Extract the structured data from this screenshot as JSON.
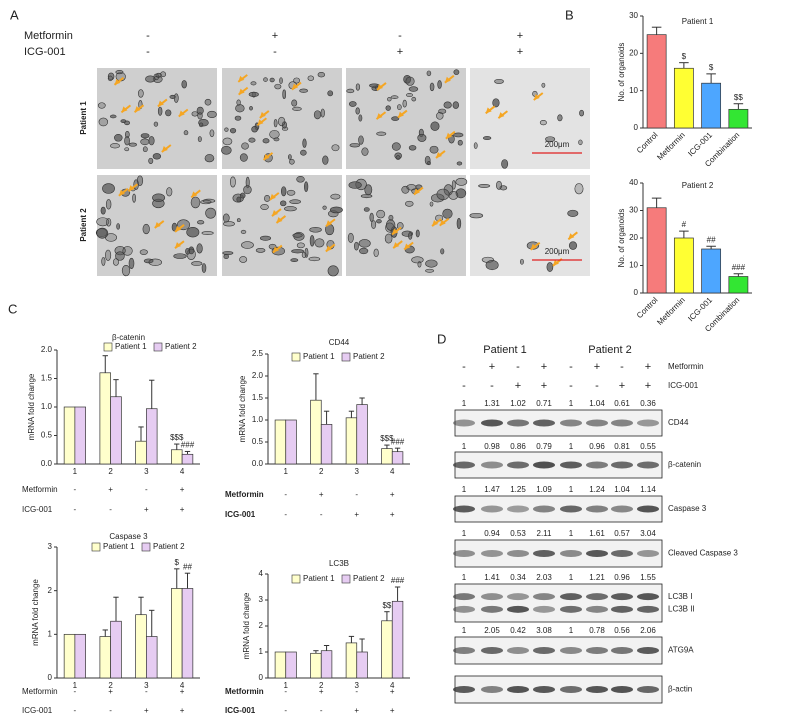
{
  "panels": [
    "A",
    "B",
    "C",
    "D"
  ],
  "panel_a": {
    "treatments": [
      {
        "label": "Metformin",
        "signs": [
          "-",
          "+",
          "-",
          "+"
        ]
      },
      {
        "label": "ICG-001",
        "signs": [
          "-",
          "-",
          "+",
          "+"
        ]
      }
    ],
    "patients": [
      "Patient 1",
      "Patient 2"
    ],
    "scale_bar": "200μm"
  },
  "panel_c_treatments": [
    {
      "label": "Metformin",
      "signs": [
        "-",
        "+",
        "-",
        "+"
      ]
    },
    {
      "label": "ICG-001",
      "signs": [
        "-",
        "-",
        "+",
        "+"
      ]
    }
  ],
  "chart_data": [
    {
      "type": "bar",
      "title": "Patient 1",
      "y_label": "No. of organoids",
      "categories": [
        "Control",
        "Metformin",
        "ICG-001",
        "Combination"
      ],
      "values": [
        25,
        16,
        12,
        5
      ],
      "errors": [
        2,
        1.5,
        2.5,
        1.5
      ],
      "colors": [
        "#f67b7b",
        "#ffff33",
        "#4da6ff",
        "#33e633"
      ],
      "annotations": [
        null,
        "$",
        "$",
        "$$"
      ],
      "ylim": [
        0,
        30
      ],
      "yticks": [
        0,
        10,
        20,
        30
      ]
    },
    {
      "type": "bar",
      "title": "Patient 2",
      "y_label": "No. of organoids",
      "categories": [
        "Control",
        "Metformin",
        "ICG-001",
        "Combination"
      ],
      "values": [
        31,
        20,
        16,
        6
      ],
      "errors": [
        3.5,
        2.5,
        1,
        1
      ],
      "colors": [
        "#f67b7b",
        "#ffff33",
        "#4da6ff",
        "#33e633"
      ],
      "annotations": [
        null,
        "#",
        "##",
        "###"
      ],
      "ylim": [
        0,
        40
      ],
      "yticks": [
        0,
        10,
        20,
        30,
        40
      ]
    },
    {
      "type": "bar",
      "title": "β-catenin",
      "y_label": "mRNA fold change",
      "categories": [
        "1",
        "2",
        "3",
        "4"
      ],
      "series": [
        {
          "name": "Patient 1",
          "color": "#ffffcc",
          "values": [
            1,
            1.6,
            0.4,
            0.25
          ],
          "errors": [
            null,
            0.3,
            0.25,
            0.1
          ],
          "annotations": [
            null,
            null,
            null,
            "$$$"
          ]
        },
        {
          "name": "Patient 2",
          "color": "#e6ccf2",
          "values": [
            1,
            1.18,
            0.97,
            0.17
          ],
          "errors": [
            null,
            0.3,
            0.5,
            0.05
          ],
          "annotations": [
            null,
            null,
            null,
            "###"
          ]
        }
      ],
      "ylim": [
        0,
        2
      ],
      "yticks": [
        {
          "value": 0,
          "label": "0.0"
        },
        {
          "value": 0.5,
          "label": "0.5"
        },
        {
          "value": 1,
          "label": "1.0"
        },
        {
          "value": 1.5,
          "label": "1.5"
        },
        {
          "value": 2,
          "label": "2.0"
        }
      ]
    },
    {
      "type": "bar",
      "title": "CD44",
      "y_label": "mRNA fold change",
      "categories": [
        "1",
        "2",
        "3",
        "4"
      ],
      "series": [
        {
          "name": "Patient 1",
          "color": "#ffffcc",
          "values": [
            1,
            1.45,
            1.05,
            0.35
          ],
          "errors": [
            null,
            0.6,
            0.15,
            0.08
          ],
          "annotations": [
            null,
            null,
            null,
            "$$$"
          ]
        },
        {
          "name": "Patient 2",
          "color": "#e6ccf2",
          "values": [
            1,
            0.9,
            1.35,
            0.28
          ],
          "errors": [
            null,
            0.3,
            0.15,
            0.08
          ],
          "annotations": [
            null,
            null,
            null,
            "###"
          ]
        }
      ],
      "ylim": [
        0,
        2.5
      ],
      "yticks": [
        {
          "value": 0,
          "label": "0.0"
        },
        {
          "value": 0.5,
          "label": "0.5"
        },
        {
          "value": 1,
          "label": "1.0"
        },
        {
          "value": 1.5,
          "label": "1.5"
        },
        {
          "value": 2,
          "label": "2.0"
        },
        {
          "value": 2.5,
          "label": "2.5"
        }
      ]
    },
    {
      "type": "bar",
      "title": "Caspase 3",
      "y_label": "mRNA fold change",
      "categories": [
        "1",
        "2",
        "3",
        "4"
      ],
      "series": [
        {
          "name": "Patient 1",
          "color": "#ffffcc",
          "values": [
            1,
            0.95,
            1.45,
            2.05
          ],
          "errors": [
            null,
            0.15,
            0.4,
            0.45
          ],
          "annotations": [
            null,
            null,
            null,
            "$"
          ]
        },
        {
          "name": "Patient 2",
          "color": "#e6ccf2",
          "values": [
            1,
            1.3,
            0.95,
            2.05
          ],
          "errors": [
            null,
            0.55,
            0.6,
            0.35
          ],
          "annotations": [
            null,
            null,
            null,
            "##"
          ]
        }
      ],
      "ylim": [
        0,
        3
      ],
      "yticks": [
        0,
        1,
        2,
        3
      ]
    },
    {
      "type": "bar",
      "title": "LC3B",
      "y_label": "mRNA fold change",
      "categories": [
        "1",
        "2",
        "3",
        "4"
      ],
      "series": [
        {
          "name": "Patient 1",
          "color": "#ffffcc",
          "values": [
            1,
            0.95,
            1.35,
            2.2
          ],
          "errors": [
            null,
            0.1,
            0.25,
            0.35
          ],
          "annotations": [
            null,
            null,
            null,
            "$$"
          ]
        },
        {
          "name": "Patient 2",
          "color": "#e6ccf2",
          "values": [
            1,
            1.05,
            1.0,
            2.95
          ],
          "errors": [
            null,
            0.2,
            0.5,
            0.55
          ],
          "annotations": [
            null,
            null,
            null,
            "###"
          ]
        }
      ],
      "ylim": [
        0,
        4
      ],
      "yticks": [
        0,
        1,
        2,
        3,
        4
      ]
    }
  ],
  "panel_d": {
    "patients": [
      "Patient 1",
      "Patient 2"
    ],
    "treatments": [
      {
        "label": "Metformin",
        "signs": [
          "-",
          "+",
          "-",
          "+",
          "-",
          "+",
          "-",
          "+"
        ]
      },
      {
        "label": "ICG-001",
        "signs": [
          "-",
          "-",
          "+",
          "+",
          "-",
          "-",
          "+",
          "+"
        ]
      }
    ],
    "blots": [
      {
        "labels": [
          "CD44"
        ],
        "quant": [
          1,
          1.31,
          1.02,
          0.71,
          1,
          1.04,
          0.61,
          0.36
        ]
      },
      {
        "labels": [
          "β-catenin"
        ],
        "quant": [
          1,
          0.98,
          0.86,
          0.79,
          1,
          0.96,
          0.81,
          0.55
        ]
      },
      {
        "labels": [
          "Caspase 3"
        ],
        "quant": [
          1,
          1.47,
          1.25,
          1.09,
          1,
          1.24,
          1.04,
          1.14
        ]
      },
      {
        "labels": [
          "Cleaved Caspase 3"
        ],
        "quant": [
          1,
          0.94,
          0.53,
          2.11,
          1,
          1.61,
          0.57,
          3.04
        ]
      },
      {
        "labels": [
          "LC3B I",
          "LC3B II"
        ],
        "quant": [
          1,
          1.41,
          0.34,
          2.03,
          1,
          1.21,
          0.96,
          1.55
        ]
      },
      {
        "labels": [
          "ATG9A"
        ],
        "quant": [
          1,
          2.05,
          0.42,
          3.08,
          1,
          0.78,
          0.56,
          2.06
        ]
      },
      {
        "labels": [
          "β-actin"
        ]
      }
    ]
  }
}
